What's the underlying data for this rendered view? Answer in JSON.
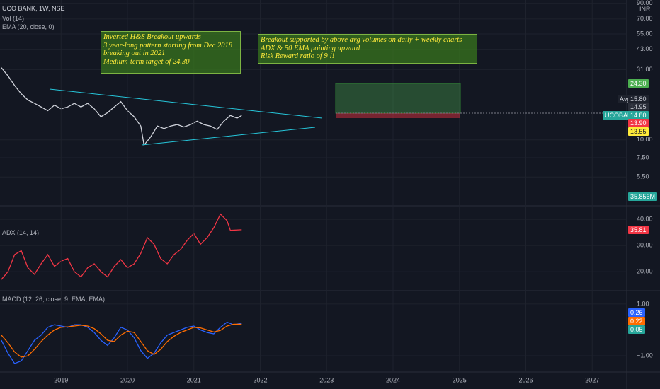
{
  "header": {
    "symbol": "UCO BANK, 1W, NSE",
    "vol": "Vol (14)",
    "ema": "EMA (20, close, 0)",
    "currency": "INR"
  },
  "annotations": [
    {
      "lines": [
        "Inverted H&S Breakout upwards",
        "3 year-long pattern starting from Dec 2018",
        "breaking out in 2021",
        "Medium-term target of 24.30"
      ]
    },
    {
      "lines": [
        "Breakout supported by above avg volumes on daily + weekly charts",
        "ADX & 50 EMA  pointing upward",
        "Risk Reward ratio of 9 !!"
      ]
    }
  ],
  "tags": {
    "target": "24.30",
    "avg_label": "Avg",
    "avg": "15.80",
    "t1": "14.95",
    "sym_label": "UCOBANK",
    "last": "14.80",
    "stop": "13.90",
    "ema": "13.55",
    "volume": "35.856M",
    "adx": "35.81",
    "macd": "0.26",
    "signal": "0.22",
    "hist": "0.05"
  },
  "chart_data": [
    {
      "type": "line",
      "color": "#d1d4dc",
      "logscale": true,
      "grid": true,
      "xlim": [
        2018.08,
        2027.52
      ],
      "ylim": [
        3.5,
        95
      ],
      "yticks": [
        {
          "value": 90,
          "label": "90.00"
        },
        {
          "value": 70,
          "label": "70.00"
        },
        {
          "value": 55,
          "label": "55.00"
        },
        {
          "value": 43,
          "label": "43.00"
        },
        {
          "value": 31,
          "label": "31.00"
        },
        {
          "value": 10,
          "label": "10.00"
        },
        {
          "value": 7.5,
          "label": "7.50"
        },
        {
          "value": 5.5,
          "label": "5.50"
        }
      ],
      "x": [
        2018.1,
        2018.2,
        2018.3,
        2018.4,
        2018.5,
        2018.6,
        2018.7,
        2018.8,
        2018.9,
        2019.0,
        2019.1,
        2019.2,
        2019.3,
        2019.4,
        2019.5,
        2019.6,
        2019.7,
        2019.8,
        2019.9,
        2020.0,
        2020.1,
        2020.2,
        2020.25,
        2020.35,
        2020.45,
        2020.55,
        2020.65,
        2020.75,
        2020.85,
        2020.95,
        2021.05,
        2021.15,
        2021.25,
        2021.35,
        2021.45,
        2021.55,
        2021.65,
        2021.72
      ],
      "values": [
        32,
        28,
        24,
        21,
        19,
        18,
        17,
        16,
        17.5,
        16.5,
        17,
        18,
        17,
        18,
        16.5,
        14.5,
        15.5,
        17,
        18.5,
        16,
        14.5,
        12.5,
        9.2,
        10.5,
        12.5,
        12,
        12.5,
        12.8,
        12.3,
        12.8,
        13.5,
        12.8,
        12.5,
        11.8,
        13.5,
        14.8,
        14.2,
        14.8
      ]
    },
    {
      "type": "line",
      "title": "ADX (14, 14)",
      "color": "#f23645",
      "grid": true,
      "xlim": [
        2018.08,
        2027.52
      ],
      "ylim": [
        13,
        44.9
      ],
      "yticks": [
        {
          "value": 40,
          "label": "40.00"
        },
        {
          "value": 30,
          "label": "30.00"
        },
        {
          "value": 20,
          "label": "20.00"
        }
      ],
      "x": [
        2018.1,
        2018.2,
        2018.3,
        2018.4,
        2018.5,
        2018.6,
        2018.7,
        2018.8,
        2018.9,
        2019.0,
        2019.1,
        2019.2,
        2019.3,
        2019.4,
        2019.5,
        2019.6,
        2019.7,
        2019.8,
        2019.9,
        2020.0,
        2020.1,
        2020.2,
        2020.3,
        2020.4,
        2020.5,
        2020.6,
        2020.7,
        2020.8,
        2020.9,
        2021.0,
        2021.1,
        2021.2,
        2021.3,
        2021.4,
        2021.5,
        2021.55,
        2021.72
      ],
      "values": [
        17,
        20,
        26.5,
        28,
        21.5,
        19,
        23,
        26.5,
        22,
        24,
        25,
        20,
        18,
        21.5,
        23,
        20,
        18,
        22,
        24.6,
        21.5,
        23,
        27,
        33,
        30.5,
        25,
        23,
        26.5,
        28.5,
        32,
        34.6,
        30.5,
        33,
        36.8,
        42,
        39.5,
        35.8,
        36
      ]
    },
    {
      "type": "line",
      "title": "MACD (12, 26, close, 9, EMA, EMA)",
      "grid": true,
      "xlim": [
        2018.08,
        2027.52
      ],
      "ylim": [
        -1.6,
        1.49
      ],
      "yticks": [
        {
          "value": 1,
          "label": "1.00"
        },
        {
          "value": -1,
          "label": "−1.00"
        }
      ],
      "xticks": [
        2019,
        2020,
        2021,
        2022,
        2023,
        2024,
        2025,
        2026,
        2027
      ],
      "x": [
        2018.1,
        2018.2,
        2018.3,
        2018.4,
        2018.5,
        2018.6,
        2018.7,
        2018.8,
        2018.9,
        2019.0,
        2019.1,
        2019.2,
        2019.3,
        2019.4,
        2019.5,
        2019.6,
        2019.7,
        2019.8,
        2019.9,
        2020.0,
        2020.1,
        2020.2,
        2020.3,
        2020.4,
        2020.5,
        2020.6,
        2020.7,
        2020.8,
        2020.9,
        2021.0,
        2021.1,
        2021.2,
        2021.3,
        2021.4,
        2021.5,
        2021.6,
        2021.72
      ],
      "series": [
        {
          "color": "#2962ff",
          "values": [
            -0.4,
            -0.9,
            -1.3,
            -1.2,
            -0.8,
            -0.4,
            -0.2,
            0.1,
            0.2,
            0.15,
            0.1,
            0.2,
            0.2,
            0.1,
            -0.1,
            -0.4,
            -0.6,
            -0.3,
            0.1,
            0.0,
            -0.3,
            -0.8,
            -1.1,
            -0.9,
            -0.5,
            -0.2,
            -0.1,
            0.0,
            0.1,
            0.15,
            0.0,
            -0.1,
            -0.15,
            0.1,
            0.3,
            0.2,
            0.26
          ]
        },
        {
          "color": "#ff6d00",
          "values": [
            -0.2,
            -0.5,
            -0.85,
            -1.05,
            -1.0,
            -0.75,
            -0.45,
            -0.2,
            0.0,
            0.1,
            0.12,
            0.15,
            0.18,
            0.15,
            0.05,
            -0.15,
            -0.4,
            -0.45,
            -0.2,
            -0.05,
            -0.1,
            -0.45,
            -0.8,
            -0.95,
            -0.75,
            -0.45,
            -0.25,
            -0.1,
            0.0,
            0.1,
            0.08,
            0.0,
            -0.08,
            -0.02,
            0.15,
            0.22,
            0.22
          ]
        }
      ]
    }
  ]
}
